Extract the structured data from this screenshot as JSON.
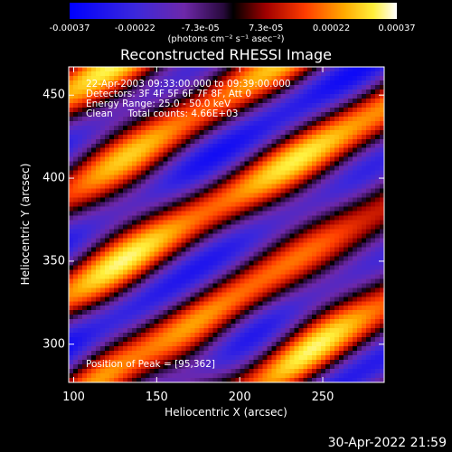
{
  "colorbar": {
    "tick_labels": [
      "-0.00037",
      "-0.00022",
      "-7.3e-05",
      "7.3e-05",
      "0.00022",
      "0.00037"
    ],
    "units": "(photons cm⁻² s⁻¹ asec⁻²)"
  },
  "chart_data": {
    "type": "heatmap",
    "title": "Reconstructed RHESSI Image",
    "xlabel": "Heliocentric X (arcsec)",
    "ylabel": "Heliocentric Y (arcsec)",
    "xlim": [
      97,
      287
    ],
    "ylim": [
      277,
      467
    ],
    "x_ticks": [
      100,
      150,
      200,
      250
    ],
    "y_ticks": [
      300,
      350,
      400,
      450
    ],
    "color_range": [
      -0.00037,
      0.00037
    ],
    "colormap": "blue-purple-black-red-yellow-white",
    "peak_position": [
      95,
      362
    ],
    "annotations": [
      "22-Apr-2003 09:33:00.000 to 09:39:00.000",
      "Detectors: 3F 4F 5F 6F 7F 8F, Att 0",
      "Energy Range: 25.0 - 50.0 keV",
      "Clean     Total counts: 4.66E+03",
      "Position of Peak = [95,362]"
    ]
  },
  "footer": {
    "timestamp": "30-Apr-2022 21:59"
  }
}
